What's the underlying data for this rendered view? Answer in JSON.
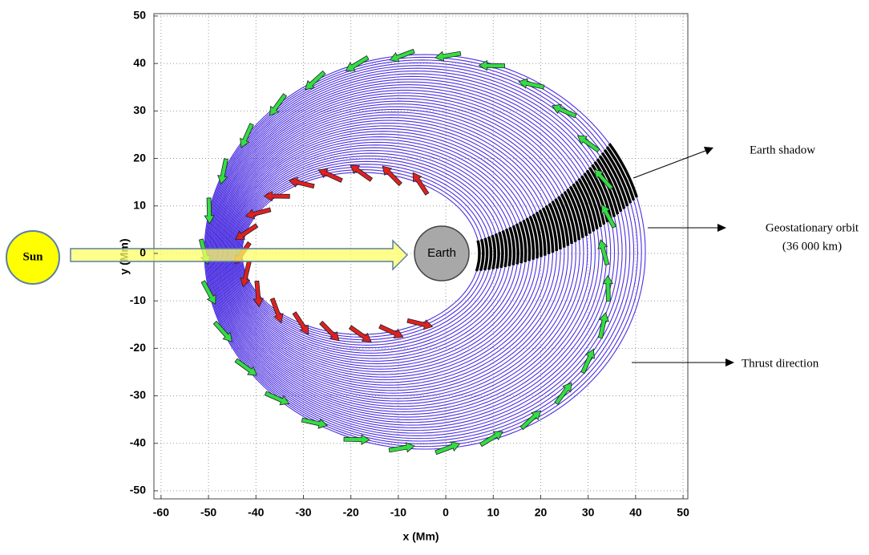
{
  "chart_data": {
    "type": "orbit",
    "xlabel": "x (Mm)",
    "ylabel": "y (Mm)",
    "xlim": [
      -61.5,
      51
    ],
    "ylim": [
      -51.7,
      50.5
    ],
    "xticks": [
      -60,
      -50,
      -40,
      -30,
      -20,
      -10,
      0,
      10,
      20,
      30,
      40,
      50
    ],
    "yticks": [
      -50,
      -40,
      -30,
      -20,
      -10,
      0,
      10,
      20,
      30,
      40,
      50
    ],
    "grid": true,
    "annotations": {
      "sun": "Sun",
      "earth": "Earth",
      "shadow": "Earth shadow",
      "geo": "Geostationary orbit",
      "geo_note": "(36 000 km)",
      "thrust": "Thrust direction"
    }
  }
}
